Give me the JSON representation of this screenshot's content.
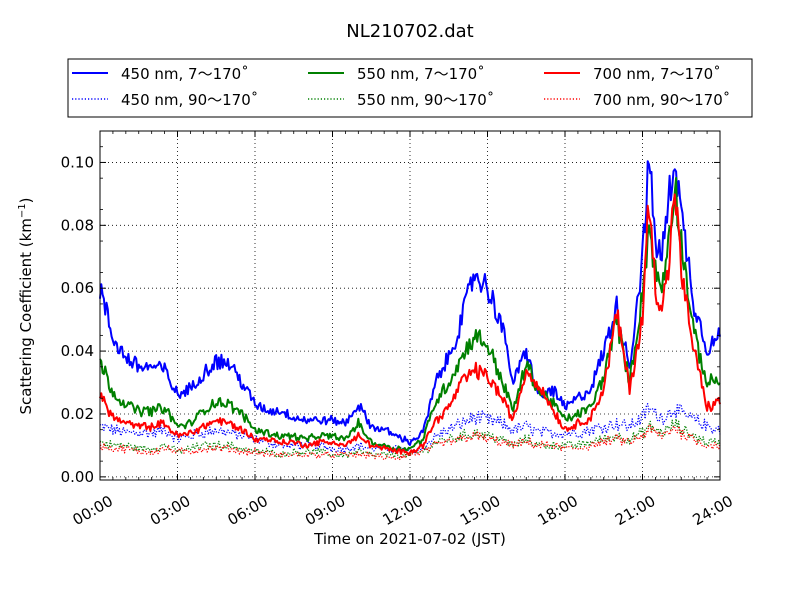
{
  "chart_data": {
    "type": "line",
    "title": "NL210702.dat",
    "xlabel": "Time on 2021-07-02 (JST)",
    "ylabel": "Scattering Coefficient (km",
    "ylabel_sup": "−1",
    "ylabel_close": ")",
    "x_unit": "hour",
    "xlim": [
      0,
      24
    ],
    "ylim": [
      -0.001,
      0.11
    ],
    "x_ticks": [
      0,
      3,
      6,
      9,
      12,
      15,
      18,
      21,
      24
    ],
    "x_tick_labels": [
      "00:00",
      "03:00",
      "06:00",
      "09:00",
      "12:00",
      "15:00",
      "18:00",
      "21:00",
      "24:00"
    ],
    "y_ticks": [
      0.0,
      0.02,
      0.04,
      0.06,
      0.08,
      0.1
    ],
    "y_tick_labels": [
      "0.00",
      "0.02",
      "0.04",
      "0.06",
      "0.08",
      "0.10"
    ],
    "grid": true,
    "legend_position": "above-plot",
    "x": [
      0,
      0.5,
      1,
      1.5,
      2,
      2.5,
      3,
      3.5,
      4,
      4.5,
      5,
      5.5,
      6,
      6.5,
      7,
      7.5,
      8,
      8.5,
      9,
      9.5,
      10,
      10.5,
      11,
      11.5,
      12,
      12.5,
      13,
      13.5,
      14,
      14.5,
      15,
      15.5,
      16,
      16.5,
      17,
      17.5,
      18,
      18.5,
      19,
      19.5,
      20,
      20.5,
      21,
      21.25,
      21.5,
      21.75,
      22,
      22.25,
      22.5,
      22.75,
      23,
      23.5,
      24
    ],
    "series": [
      {
        "name": "450 nm, 7～170˚",
        "color": "#0000ff",
        "style": "solid",
        "values": [
          0.06,
          0.044,
          0.038,
          0.035,
          0.035,
          0.034,
          0.026,
          0.028,
          0.033,
          0.037,
          0.036,
          0.03,
          0.023,
          0.021,
          0.021,
          0.019,
          0.018,
          0.018,
          0.018,
          0.017,
          0.023,
          0.016,
          0.015,
          0.013,
          0.011,
          0.014,
          0.03,
          0.038,
          0.05,
          0.065,
          0.06,
          0.05,
          0.03,
          0.04,
          0.025,
          0.028,
          0.022,
          0.025,
          0.028,
          0.04,
          0.054,
          0.035,
          0.07,
          0.101,
          0.075,
          0.07,
          0.087,
          0.103,
          0.083,
          0.07,
          0.055,
          0.041,
          0.045
        ]
      },
      {
        "name": "450 nm, 90～170˚",
        "color": "#0000ff",
        "style": "dotted",
        "values": [
          0.016,
          0.015,
          0.014,
          0.014,
          0.014,
          0.015,
          0.012,
          0.013,
          0.014,
          0.015,
          0.014,
          0.013,
          0.012,
          0.011,
          0.01,
          0.01,
          0.01,
          0.01,
          0.009,
          0.009,
          0.01,
          0.009,
          0.009,
          0.009,
          0.008,
          0.009,
          0.013,
          0.015,
          0.017,
          0.019,
          0.018,
          0.017,
          0.015,
          0.016,
          0.014,
          0.014,
          0.014,
          0.014,
          0.015,
          0.016,
          0.017,
          0.016,
          0.019,
          0.022,
          0.02,
          0.019,
          0.02,
          0.022,
          0.02,
          0.019,
          0.018,
          0.016,
          0.015
        ]
      },
      {
        "name": "550 nm, 7～170˚",
        "color": "#008000",
        "style": "solid",
        "values": [
          0.037,
          0.027,
          0.023,
          0.021,
          0.021,
          0.022,
          0.016,
          0.017,
          0.021,
          0.024,
          0.023,
          0.02,
          0.015,
          0.014,
          0.013,
          0.013,
          0.012,
          0.013,
          0.013,
          0.012,
          0.017,
          0.011,
          0.01,
          0.009,
          0.009,
          0.012,
          0.024,
          0.03,
          0.038,
          0.045,
          0.042,
          0.032,
          0.021,
          0.036,
          0.027,
          0.024,
          0.018,
          0.02,
          0.022,
          0.032,
          0.05,
          0.03,
          0.058,
          0.08,
          0.065,
          0.06,
          0.075,
          0.094,
          0.075,
          0.06,
          0.045,
          0.03,
          0.031
        ]
      },
      {
        "name": "550 nm, 90～170˚",
        "color": "#008000",
        "style": "dotted",
        "values": [
          0.011,
          0.01,
          0.01,
          0.009,
          0.009,
          0.01,
          0.008,
          0.009,
          0.01,
          0.01,
          0.01,
          0.009,
          0.008,
          0.008,
          0.007,
          0.008,
          0.008,
          0.008,
          0.007,
          0.007,
          0.008,
          0.007,
          0.007,
          0.007,
          0.007,
          0.008,
          0.011,
          0.012,
          0.013,
          0.014,
          0.013,
          0.012,
          0.01,
          0.012,
          0.01,
          0.01,
          0.01,
          0.01,
          0.011,
          0.012,
          0.013,
          0.012,
          0.014,
          0.016,
          0.015,
          0.014,
          0.015,
          0.017,
          0.015,
          0.014,
          0.013,
          0.011,
          0.011
        ]
      },
      {
        "name": "700 nm, 7～170˚",
        "color": "#ff0000",
        "style": "solid",
        "values": [
          0.026,
          0.019,
          0.017,
          0.016,
          0.016,
          0.017,
          0.013,
          0.014,
          0.016,
          0.018,
          0.017,
          0.015,
          0.012,
          0.012,
          0.011,
          0.011,
          0.01,
          0.011,
          0.011,
          0.01,
          0.013,
          0.01,
          0.009,
          0.008,
          0.008,
          0.01,
          0.018,
          0.022,
          0.03,
          0.034,
          0.032,
          0.026,
          0.018,
          0.034,
          0.029,
          0.022,
          0.015,
          0.017,
          0.019,
          0.028,
          0.052,
          0.028,
          0.05,
          0.089,
          0.06,
          0.055,
          0.065,
          0.093,
          0.065,
          0.052,
          0.04,
          0.022,
          0.024
        ]
      },
      {
        "name": "700 nm, 90～170˚",
        "color": "#ff0000",
        "style": "dotted",
        "values": [
          0.01,
          0.009,
          0.009,
          0.008,
          0.008,
          0.009,
          0.008,
          0.008,
          0.009,
          0.009,
          0.009,
          0.008,
          0.008,
          0.007,
          0.007,
          0.007,
          0.007,
          0.007,
          0.007,
          0.007,
          0.007,
          0.007,
          0.006,
          0.006,
          0.007,
          0.008,
          0.01,
          0.011,
          0.012,
          0.013,
          0.012,
          0.011,
          0.01,
          0.011,
          0.01,
          0.01,
          0.009,
          0.009,
          0.01,
          0.011,
          0.012,
          0.011,
          0.013,
          0.015,
          0.014,
          0.013,
          0.014,
          0.016,
          0.014,
          0.013,
          0.012,
          0.01,
          0.01
        ]
      }
    ]
  }
}
